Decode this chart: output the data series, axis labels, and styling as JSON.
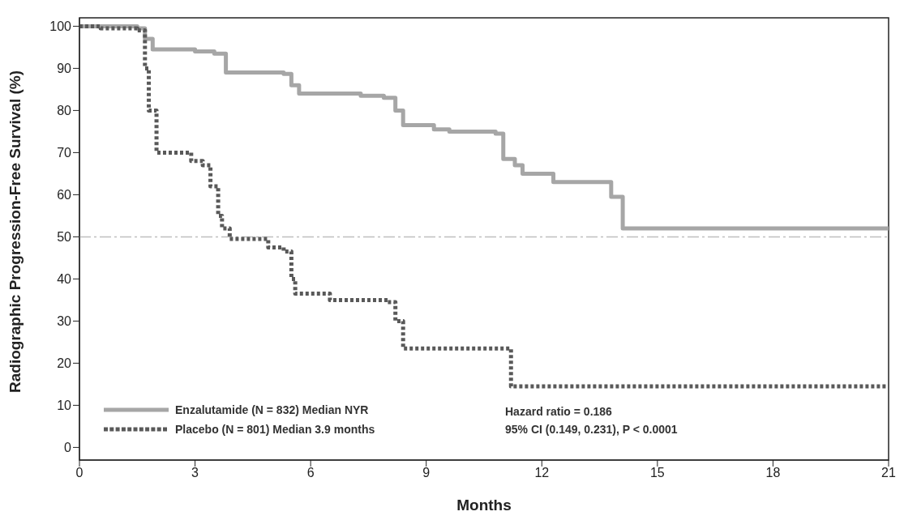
{
  "chart_data": {
    "type": "step",
    "xlabel": "Months",
    "ylabel": "Radiographic Progression-Free Survival (%)",
    "xlim": [
      0,
      21
    ],
    "xticks": [
      0,
      3,
      6,
      9,
      12,
      15,
      18,
      21
    ],
    "ylim": [
      -3,
      102
    ],
    "yticks": [
      0,
      10,
      20,
      30,
      40,
      50,
      60,
      70,
      80,
      90,
      100
    ],
    "grid": false,
    "legend": "bottom left",
    "series": [
      {
        "name": "Enzalutamide (N = 832) Median NYR",
        "color": "#a6a6a6",
        "line_style": "solid",
        "x": [
          0,
          1.5,
          1.7,
          1.9,
          3.0,
          3.5,
          3.8,
          5.3,
          5.5,
          5.7,
          7.3,
          7.9,
          8.2,
          8.4,
          9.2,
          9.6,
          10.8,
          11.0,
          11.3,
          11.5,
          12.3,
          13.8,
          14.1,
          21
        ],
        "values": [
          100,
          99.5,
          97,
          94.5,
          94,
          93.5,
          89,
          88.7,
          86,
          84,
          83.5,
          83,
          80,
          76.5,
          75.5,
          75,
          74.5,
          68.5,
          67,
          65,
          63,
          59.5,
          52,
          52
        ]
      },
      {
        "name": "Placebo (N = 801) Median 3.9 months",
        "color": "#595959",
        "line_style": "dotted",
        "x": [
          0,
          0.55,
          1.5,
          1.7,
          1.8,
          2.0,
          2.9,
          3.2,
          3.4,
          3.6,
          3.7,
          3.9,
          4.9,
          5.3,
          5.5,
          5.6,
          6.5,
          8.0,
          8.2,
          8.4,
          11.05,
          11.2,
          21
        ],
        "values": [
          100,
          99.5,
          99,
          90,
          80,
          70,
          68,
          67,
          62,
          55,
          52,
          49.5,
          47.5,
          46.5,
          40,
          36.5,
          35,
          34.5,
          30,
          23.5,
          23.5,
          14.5,
          14.5
        ]
      }
    ],
    "ref_lines": [
      {
        "axis": "y",
        "value": 50,
        "color": "#bfbfbf",
        "line_style": "dashed"
      }
    ],
    "annotations": [
      "Hazard ratio = 0.186",
      "95% CI (0.149, 0.231), P < 0.0001"
    ]
  }
}
